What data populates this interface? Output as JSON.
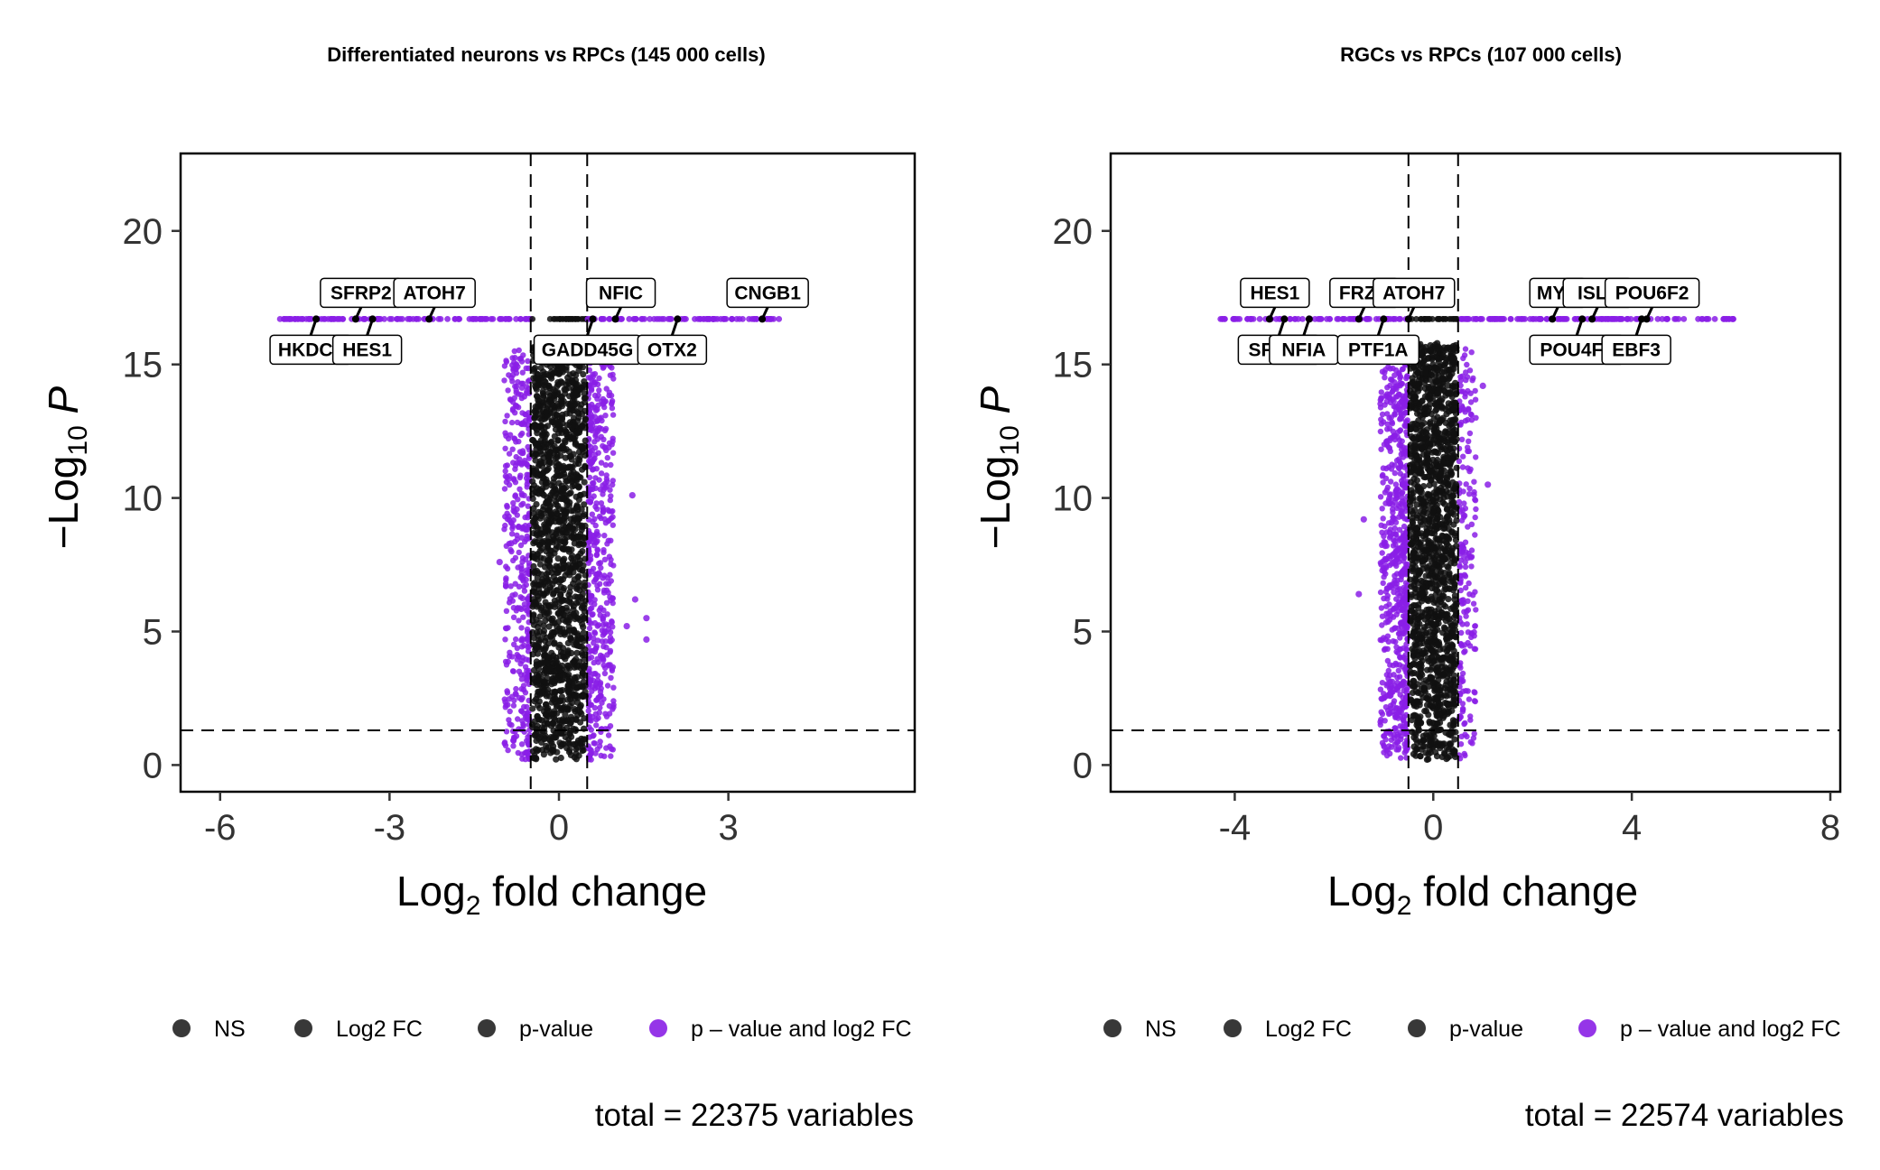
{
  "legend": {
    "items": [
      {
        "label": "NS",
        "color": "#222222"
      },
      {
        "label": "Log2 FC",
        "color": "#222222"
      },
      {
        "label": "p-value",
        "color": "#222222"
      },
      {
        "label": "p – value and log2 FC",
        "color": "#8A1FE6"
      }
    ]
  },
  "colors": {
    "ns": "#111111",
    "sig": "#8A1FE6"
  },
  "chart_data": [
    {
      "type": "scatter",
      "title": "Differentiated neurons vs RPCs (145 000 cells)",
      "xlabel": "Log2 fold change",
      "ylabel": "−Log10 P",
      "xlim": [
        -6.7,
        6.3
      ],
      "ylim": [
        -1,
        22.9
      ],
      "xticks": [
        -6,
        -3,
        0,
        3
      ],
      "xtick_labels": [
        "-6",
        "-3",
        "0",
        "3"
      ],
      "yticks": [
        0,
        5,
        10,
        15,
        20
      ],
      "fc_cutoff": 0.5,
      "p_cutoff": 1.3,
      "cap_y": 16.7,
      "cap_x_range": [
        -5.0,
        3.9
      ],
      "outliers": [
        [
          -1.05,
          7.6
        ],
        [
          -0.85,
          8.3
        ],
        [
          1.3,
          10.1
        ],
        [
          1.2,
          5.2
        ],
        [
          1.35,
          6.2
        ],
        [
          1.55,
          5.5
        ],
        [
          1.55,
          4.7
        ]
      ],
      "labels": [
        {
          "text": "SFRP2",
          "x": -3.6,
          "y": 16.7
        },
        {
          "text": "ATOH7",
          "x": -2.3,
          "y": 16.7
        },
        {
          "text": "HKDC1",
          "x": -4.3,
          "y": 16.7
        },
        {
          "text": "HES1",
          "x": -3.3,
          "y": 16.7
        },
        {
          "text": "NFIC",
          "x": 1.0,
          "y": 16.7
        },
        {
          "text": "CNGB1",
          "x": 3.6,
          "y": 16.7
        },
        {
          "text": "GADD45G",
          "x": 0.6,
          "y": 16.7
        },
        {
          "text": "OTX2",
          "x": 2.1,
          "y": 16.7
        }
      ],
      "caption": "total = 22375 variables"
    },
    {
      "type": "scatter",
      "title": "RGCs vs RPCs (107 000 cells)",
      "xlabel": "Log2 fold change",
      "ylabel": "−Log10 P",
      "xlim": [
        -6.5,
        8.2
      ],
      "ylim": [
        -1,
        22.9
      ],
      "xticks": [
        -4,
        0,
        4,
        8
      ],
      "xtick_labels": [
        "-4",
        "0",
        "4",
        "8"
      ],
      "yticks": [
        0,
        5,
        10,
        15,
        20
      ],
      "fc_cutoff": 0.5,
      "p_cutoff": 1.3,
      "cap_y": 16.7,
      "cap_x_range": [
        -4.3,
        6.1
      ],
      "outliers": [
        [
          -1.4,
          9.2
        ],
        [
          1.0,
          14.2
        ],
        [
          1.1,
          10.5
        ],
        [
          -1.5,
          6.4
        ]
      ],
      "labels": [
        {
          "text": "HES1",
          "x": -3.3,
          "y": 16.7
        },
        {
          "text": "FRZB",
          "x": -1.5,
          "y": 16.7
        },
        {
          "text": "ATOH7",
          "x": -0.5,
          "y": 16.7
        },
        {
          "text": "MYC",
          "x": 2.4,
          "y": 16.7
        },
        {
          "text": "ISL1",
          "x": 3.2,
          "y": 16.7
        },
        {
          "text": "POU6F2",
          "x": 4.3,
          "y": 16.7
        },
        {
          "text": "SFRP2",
          "x": -3.0,
          "y": 16.7
        },
        {
          "text": "NFIA",
          "x": -2.5,
          "y": 16.7
        },
        {
          "text": "PTF1A",
          "x": -1.0,
          "y": 16.7
        },
        {
          "text": "POU4F1",
          "x": 3.0,
          "y": 16.7
        },
        {
          "text": "EBF3",
          "x": 4.2,
          "y": 16.7
        }
      ],
      "caption": "total = 22574 variables"
    }
  ]
}
